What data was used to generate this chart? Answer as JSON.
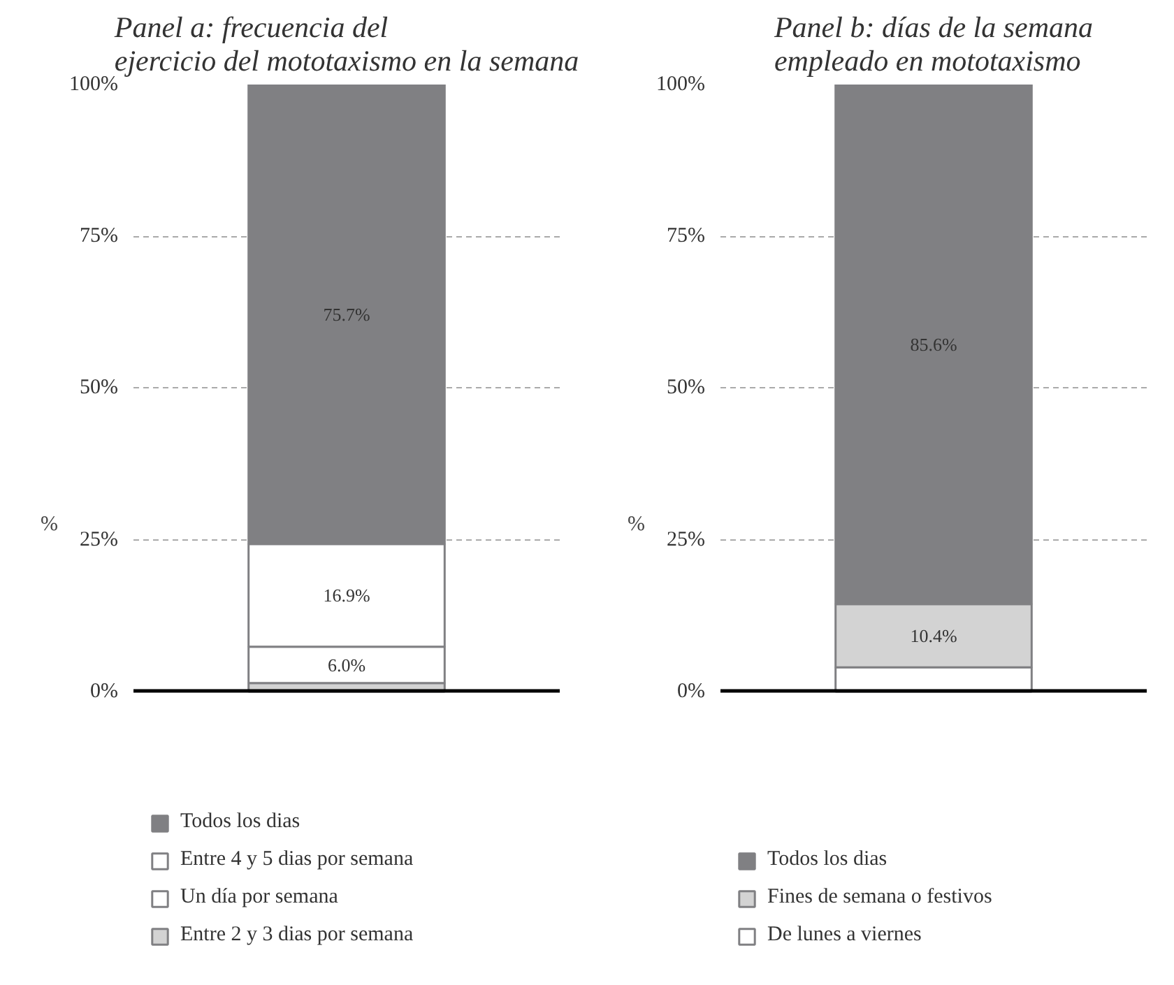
{
  "chart_data": [
    {
      "type": "bar",
      "stacked": true,
      "title": "Panel a: frecuencia del\nejercicio del mototaxismo en la semana",
      "ylabel": "%",
      "categories": [
        null
      ],
      "ylim": [
        0,
        100
      ],
      "yticks": [
        {
          "value": 0,
          "label": "0%"
        },
        {
          "value": 25,
          "label": "25%"
        },
        {
          "value": 50,
          "label": "50%"
        },
        {
          "value": 75,
          "label": "75%"
        },
        {
          "value": 100,
          "label": "100%"
        }
      ],
      "grid": "y",
      "legend": "bottom",
      "series": [
        {
          "name": "Entre 2 y 3 dias por semana",
          "color": "#d3d3d3",
          "values": [
            1.4
          ],
          "value_labels": [
            null
          ]
        },
        {
          "name": "Un día por semana",
          "color": "#ffffff",
          "values": [
            6.0
          ],
          "value_labels": [
            "6.0%"
          ]
        },
        {
          "name": "Entre 4 y 5 dias por semana",
          "color": "#ffffff",
          "values": [
            16.9
          ],
          "value_labels": [
            "16.9%"
          ]
        },
        {
          "name": "Todos los dias",
          "color": "#808083",
          "values": [
            75.7
          ],
          "value_labels": [
            "75.7%"
          ]
        }
      ]
    },
    {
      "type": "bar",
      "stacked": true,
      "title": "Panel b: días de la semana\nempleado en mototaxismo",
      "ylabel": "%",
      "categories": [
        null
      ],
      "ylim": [
        0,
        100
      ],
      "yticks": [
        {
          "value": 0,
          "label": "0%"
        },
        {
          "value": 25,
          "label": "25%"
        },
        {
          "value": 50,
          "label": "50%"
        },
        {
          "value": 75,
          "label": "75%"
        },
        {
          "value": 100,
          "label": "100%"
        }
      ],
      "grid": "y",
      "legend": "bottom",
      "series": [
        {
          "name": "De lunes a viernes",
          "color": "#ffffff",
          "values": [
            4.0
          ],
          "value_labels": [
            null
          ]
        },
        {
          "name": "Fines de semana o festivos",
          "color": "#d3d3d3",
          "values": [
            10.4
          ],
          "value_labels": [
            "10.4%"
          ]
        },
        {
          "name": "Todos los dias",
          "color": "#808083",
          "values": [
            85.6
          ],
          "value_labels": [
            "85.6%"
          ]
        }
      ]
    }
  ]
}
